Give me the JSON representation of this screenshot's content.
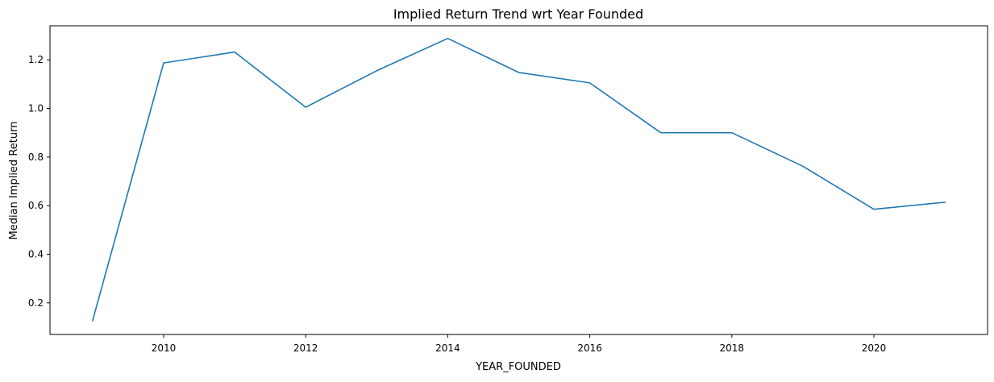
{
  "chart_data": {
    "type": "line",
    "title": "Implied Return Trend wrt Year Founded",
    "xlabel": "YEAR_FOUNDED",
    "ylabel": "Median Implied Return",
    "xlim": [
      2008.4,
      2021.6
    ],
    "ylim": [
      0.07,
      1.34
    ],
    "xticks": [
      2010,
      2012,
      2014,
      2016,
      2018,
      2020
    ],
    "xtick_labels": [
      "2010",
      "2012",
      "2014",
      "2016",
      "2018",
      "2020"
    ],
    "yticks": [
      0.2,
      0.4,
      0.6,
      0.8,
      1.0,
      1.2
    ],
    "ytick_labels": [
      "0.2",
      "0.4",
      "0.6",
      "0.8",
      "1.0",
      "1.2"
    ],
    "grid": false,
    "legend": "none",
    "series": [
      {
        "color": "#1f77b4",
        "x": [
          2009,
          2010,
          2011,
          2012,
          2013,
          2014,
          2015,
          2016,
          2017,
          2018,
          2019,
          2020,
          2021
        ],
        "y": [
          0.127,
          1.187,
          1.232,
          1.005,
          1.155,
          1.288,
          1.148,
          1.105,
          0.9,
          0.9,
          0.762,
          0.585,
          0.614
        ]
      }
    ]
  }
}
